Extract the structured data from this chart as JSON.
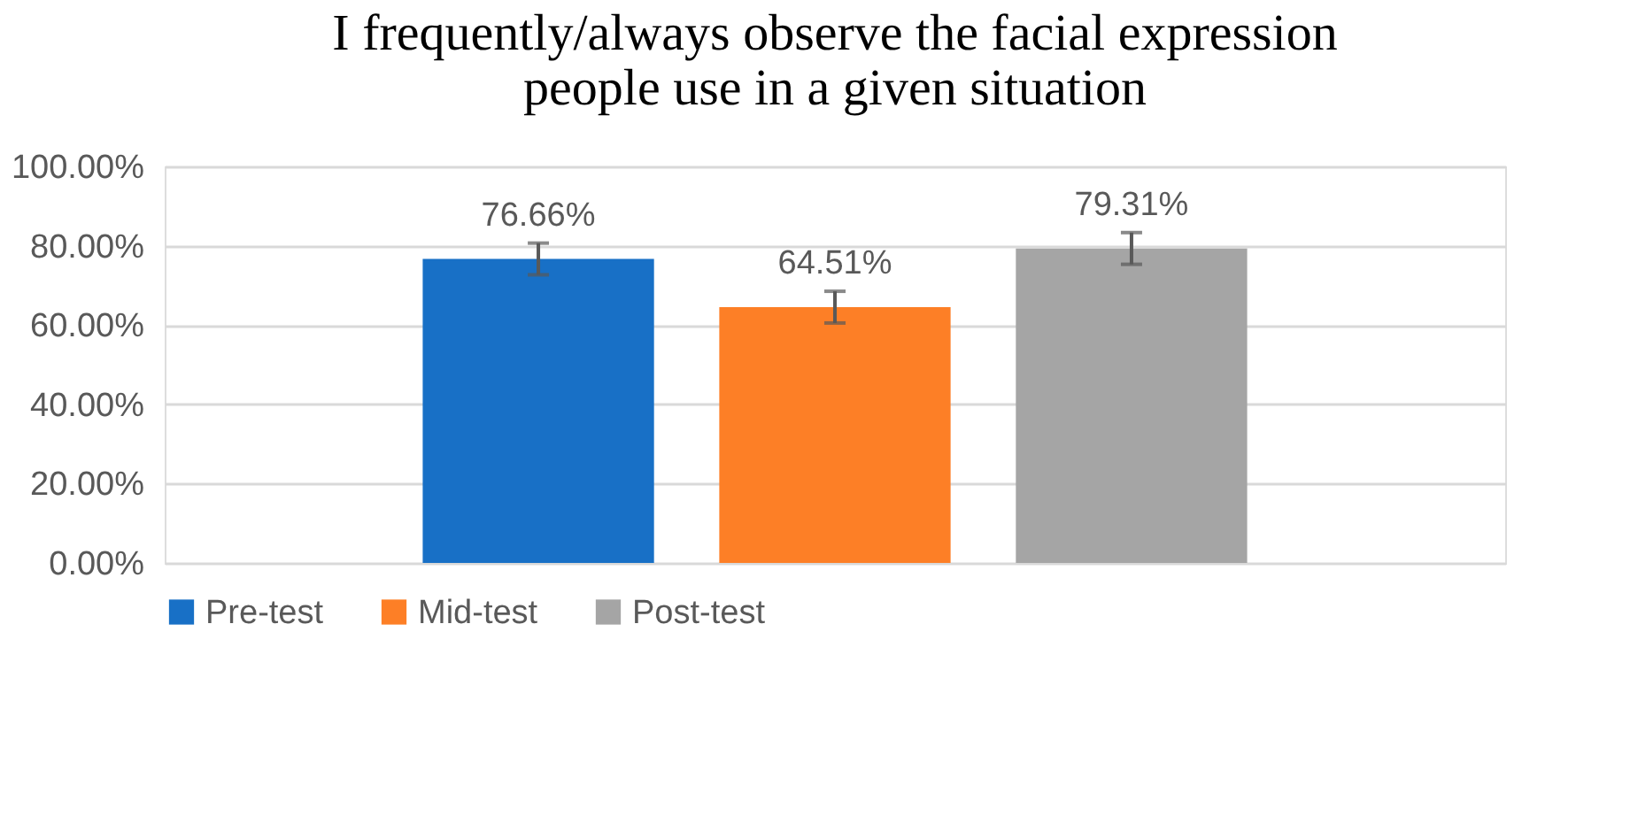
{
  "chart_data": {
    "type": "bar",
    "title": "I frequently/always observe the facial expression people use in a given situation",
    "categories": [
      null
    ],
    "series": [
      {
        "name": "Pre-test",
        "color": "#1870c6",
        "values": [
          76.66
        ],
        "errors": [
          4
        ]
      },
      {
        "name": "Mid-test",
        "color": "#fd7f26",
        "values": [
          64.51
        ],
        "errors": [
          4
        ]
      },
      {
        "name": "Post-test",
        "color": "#a5a5a5",
        "values": [
          79.31
        ],
        "errors": [
          4
        ]
      }
    ],
    "ylim": [
      0,
      100
    ],
    "yticks": [
      {
        "value": 0,
        "label": "0.00%"
      },
      {
        "value": 20,
        "label": "20.00%"
      },
      {
        "value": 40,
        "label": "40.00%"
      },
      {
        "value": 60,
        "label": "60.00%"
      },
      {
        "value": 80,
        "label": "80.00%"
      },
      {
        "value": 100,
        "label": "100.00%"
      }
    ],
    "value_labels": [
      "76.66%",
      "64.51%",
      "79.31%"
    ],
    "grid": "y",
    "legend": "bottom",
    "tick_labels": "y"
  }
}
